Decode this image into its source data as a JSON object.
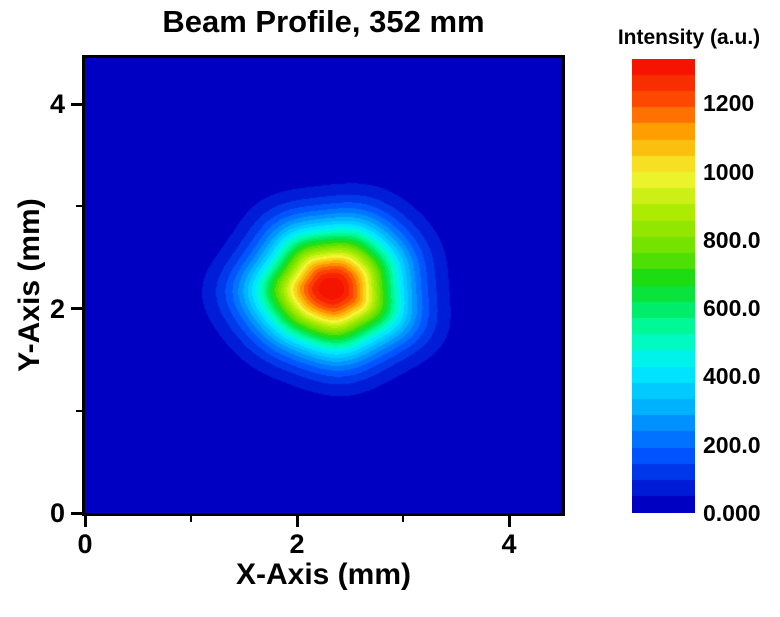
{
  "chart_data": {
    "type": "heatmap",
    "title": "Beam Profile, 352 mm",
    "xlabel": "X-Axis (mm)",
    "ylabel": "Y-Axis (mm)",
    "xlim": [
      0,
      4.5
    ],
    "ylim": [
      0,
      4.45
    ],
    "grid": false,
    "x_major_ticks": [
      {
        "value": 0,
        "label": "0"
      },
      {
        "value": 2,
        "label": "2"
      },
      {
        "value": 4,
        "label": "4"
      }
    ],
    "x_minor_ticks": [
      1,
      3
    ],
    "y_major_ticks": [
      {
        "value": 0,
        "label": "0"
      },
      {
        "value": 2,
        "label": "2"
      },
      {
        "value": 4,
        "label": "4"
      }
    ],
    "y_minor_ticks": [
      1,
      3
    ],
    "beam": {
      "model": "gaussian2d",
      "center_x_mm": 2.32,
      "center_y_mm": 2.2,
      "sigma_x_mm": 0.45,
      "sigma_y_mm": 0.4,
      "peak_intensity": 1400,
      "background_intensity": 0,
      "contour_level_step": 50
    },
    "colorbar": {
      "label": "Intensity (a.u.)",
      "min": 0,
      "max": 1330,
      "bands": 28,
      "ticks": [
        {
          "value": 1200,
          "label": "1200"
        },
        {
          "value": 1000,
          "label": "1000"
        },
        {
          "value": 800,
          "label": "800.0"
        },
        {
          "value": 600,
          "label": "600.0"
        },
        {
          "value": 400,
          "label": "400.0"
        },
        {
          "value": 200,
          "label": "200.0"
        },
        {
          "value": 0,
          "label": "0.000"
        }
      ]
    },
    "colormap": [
      {
        "value": 0,
        "color": "#0000C3"
      },
      {
        "value": 150,
        "color": "#0055FF"
      },
      {
        "value": 300,
        "color": "#00B4FF"
      },
      {
        "value": 420,
        "color": "#00F0FF"
      },
      {
        "value": 520,
        "color": "#00FFAA"
      },
      {
        "value": 600,
        "color": "#00EB64"
      },
      {
        "value": 680,
        "color": "#14DC14"
      },
      {
        "value": 760,
        "color": "#64E100"
      },
      {
        "value": 880,
        "color": "#AAEB00"
      },
      {
        "value": 1000,
        "color": "#F5F532"
      },
      {
        "value": 1120,
        "color": "#FFAA00"
      },
      {
        "value": 1220,
        "color": "#FF5000"
      },
      {
        "value": 1330,
        "color": "#F51400"
      }
    ]
  }
}
